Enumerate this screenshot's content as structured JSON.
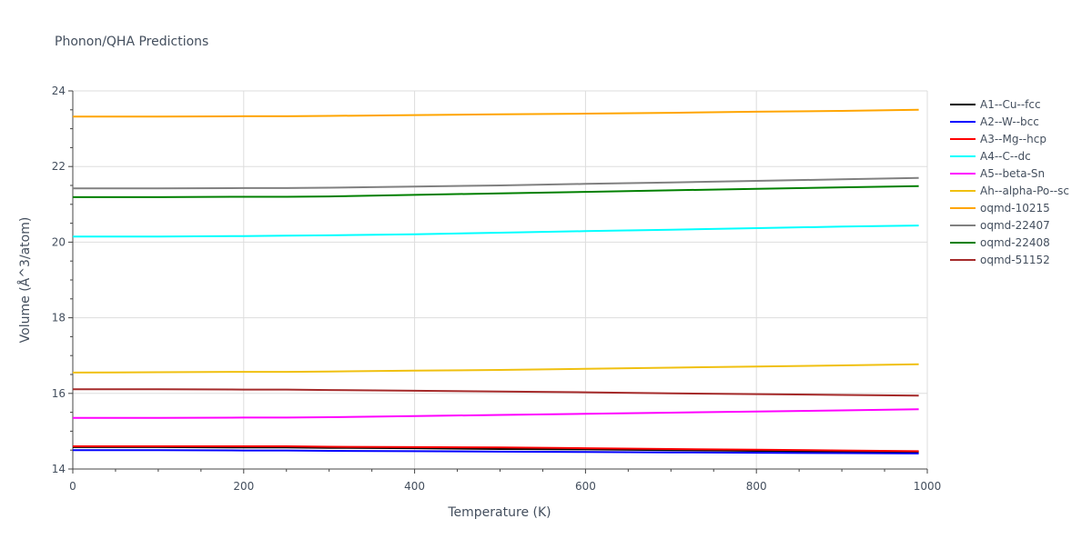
{
  "chart_data": {
    "type": "line",
    "title": "Phonon/QHA Predictions",
    "xlabel": "Temperature (K)",
    "ylabel": "Volume (Å^3/atom)",
    "xlim": [
      0,
      1000
    ],
    "ylim": [
      14,
      24
    ],
    "xticks": [
      0,
      200,
      400,
      600,
      800,
      1000
    ],
    "yticks": [
      14,
      16,
      18,
      20,
      22,
      24
    ],
    "grid": true,
    "legend_position": "right",
    "x": [
      0,
      100,
      200,
      250,
      300,
      400,
      500,
      600,
      700,
      800,
      900,
      990
    ],
    "series": [
      {
        "name": "A1--Cu--fcc",
        "color": "#000000",
        "values": [
          14.58,
          14.58,
          14.57,
          14.57,
          14.56,
          14.55,
          14.53,
          14.52,
          14.5,
          14.48,
          14.46,
          14.45
        ]
      },
      {
        "name": "A2--W--bcc",
        "color": "#0000ff",
        "values": [
          14.5,
          14.5,
          14.49,
          14.49,
          14.48,
          14.47,
          14.46,
          14.45,
          14.44,
          14.43,
          14.42,
          14.41
        ]
      },
      {
        "name": "A3--Mg--hcp",
        "color": "#ff0000",
        "values": [
          14.6,
          14.6,
          14.6,
          14.6,
          14.59,
          14.58,
          14.57,
          14.55,
          14.53,
          14.51,
          14.49,
          14.47
        ]
      },
      {
        "name": "A4--C--dc",
        "color": "#00ffff",
        "values": [
          20.15,
          20.15,
          20.16,
          20.17,
          20.18,
          20.21,
          20.25,
          20.29,
          20.33,
          20.37,
          20.41,
          20.44
        ]
      },
      {
        "name": "A5--beta-Sn",
        "color": "#ff00ff",
        "values": [
          15.35,
          15.35,
          15.36,
          15.36,
          15.37,
          15.4,
          15.43,
          15.46,
          15.49,
          15.52,
          15.55,
          15.58
        ]
      },
      {
        "name": "Ah--alpha-Po--sc",
        "color": "#f0c010",
        "values": [
          16.55,
          16.56,
          16.57,
          16.57,
          16.58,
          16.6,
          16.62,
          16.65,
          16.68,
          16.71,
          16.74,
          16.77
        ]
      },
      {
        "name": "oqmd-10215",
        "color": "#ffa500",
        "values": [
          23.32,
          23.32,
          23.33,
          23.33,
          23.34,
          23.36,
          23.38,
          23.4,
          23.42,
          23.45,
          23.47,
          23.5
        ]
      },
      {
        "name": "oqmd-22407",
        "color": "#808080",
        "values": [
          21.42,
          21.42,
          21.43,
          21.43,
          21.44,
          21.47,
          21.5,
          21.54,
          21.58,
          21.62,
          21.66,
          21.7
        ]
      },
      {
        "name": "oqmd-22408",
        "color": "#008000",
        "values": [
          21.19,
          21.19,
          21.2,
          21.2,
          21.21,
          21.25,
          21.29,
          21.33,
          21.37,
          21.41,
          21.45,
          21.48
        ]
      },
      {
        "name": "oqmd-51152",
        "color": "#a52a2a",
        "values": [
          16.11,
          16.11,
          16.1,
          16.1,
          16.09,
          16.07,
          16.05,
          16.03,
          16.0,
          15.98,
          15.96,
          15.94
        ]
      }
    ]
  }
}
